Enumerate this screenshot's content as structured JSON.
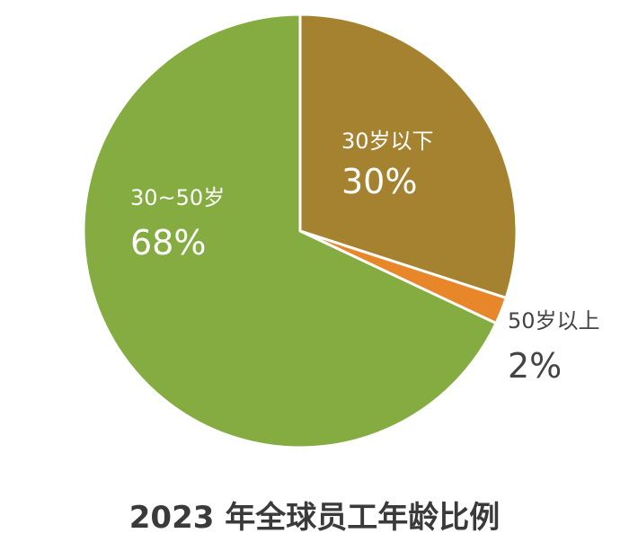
{
  "chart_data": {
    "type": "pie",
    "title": "2023 年全球员工年龄比例",
    "start_angle_deg": 0,
    "direction": "clockwise",
    "slices": [
      {
        "name": "30岁以下",
        "value": 30,
        "value_label": "30%",
        "color": "#A5822F",
        "label_position": "inside"
      },
      {
        "name": "50岁以上",
        "value": 2,
        "value_label": "2%",
        "color": "#E8862A",
        "label_position": "outside"
      },
      {
        "name": "30~50岁",
        "value": 68,
        "value_label": "68%",
        "color": "#84AC41",
        "label_position": "inside"
      }
    ]
  }
}
